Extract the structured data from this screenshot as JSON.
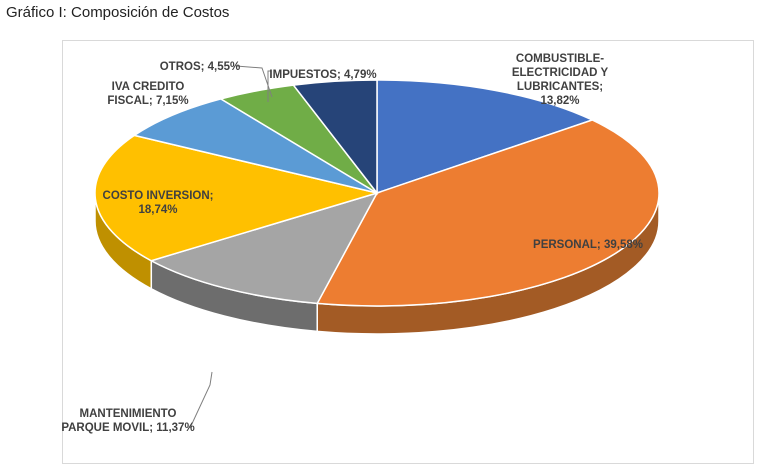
{
  "caption": "Gráfico I: Composición de Costos",
  "chart_data": {
    "type": "pie",
    "title": "",
    "three_d": true,
    "slices": [
      {
        "lines": [
          "COMBUSTIBLE-",
          "ELECTRICIDAD  Y",
          "LUBRICANTES;",
          "13,82%"
        ],
        "value": 13.82,
        "color": "#4472c4",
        "side": "#2f528f"
      },
      {
        "lines": [
          "PERSONAL; 39,58%"
        ],
        "value": 39.58,
        "color": "#ed7d31",
        "side": "#a35b25"
      },
      {
        "lines": [
          "MANTENIMIENTO",
          "PARQUE MOVIL; 11,37%"
        ],
        "value": 11.37,
        "color": "#a5a5a5",
        "side": "#6d6d6d"
      },
      {
        "lines": [
          "COSTO INVERSION;",
          "18,74%"
        ],
        "value": 18.74,
        "color": "#ffc000",
        "side": "#bf9000"
      },
      {
        "lines": [
          "IVA CREDITO",
          "FISCAL; 7,15%"
        ],
        "value": 7.15,
        "color": "#5b9bd5",
        "side": "#41719c"
      },
      {
        "lines": [
          "OTROS; 4,55%"
        ],
        "value": 4.55,
        "color": "#70ad47",
        "side": "#507e32"
      },
      {
        "lines": [
          "IMPUESTOS; 4,79%"
        ],
        "value": 4.79,
        "color": "#264478",
        "side": "#1a2f54"
      }
    ]
  }
}
